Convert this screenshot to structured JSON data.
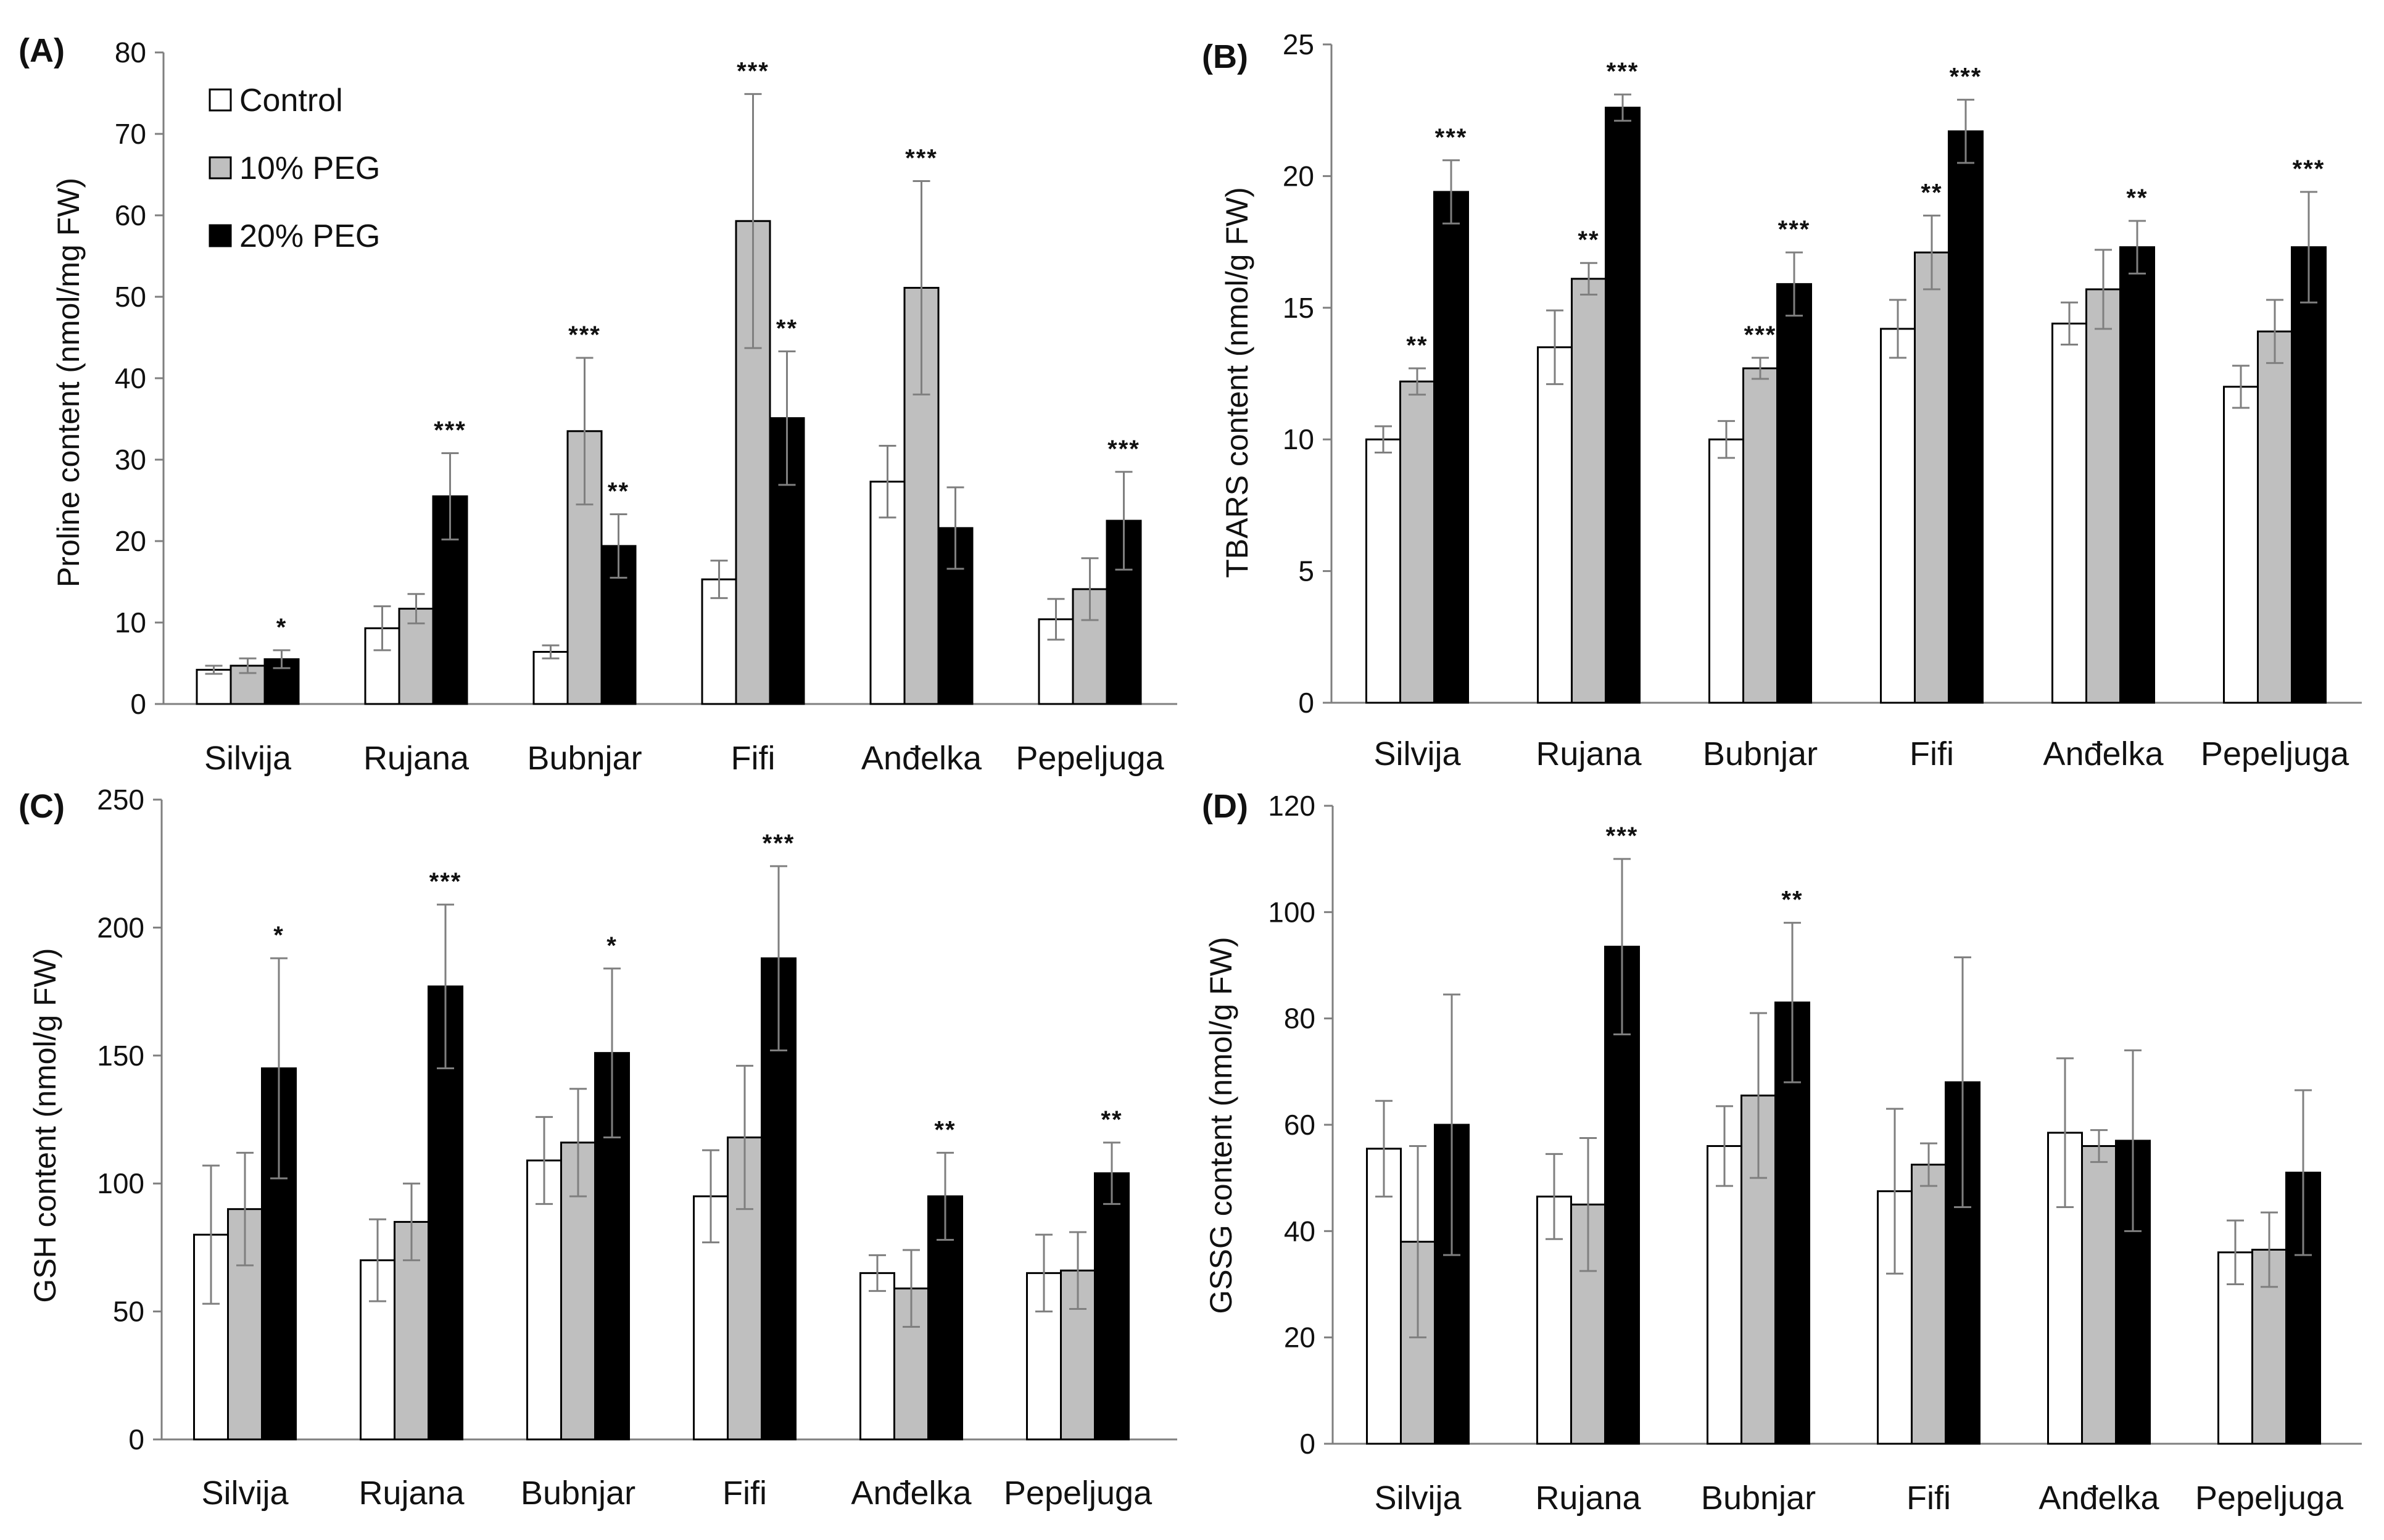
{
  "legend": {
    "entries": [
      "Control",
      "10% PEG",
      "20% PEG"
    ],
    "colors": [
      "#ffffff",
      "#bfbfbf",
      "#000000"
    ],
    "placement": "top-left of panel A"
  },
  "colors": {
    "axis": "#7f7f7f",
    "bar_stroke": "#000000",
    "error_bar": "#7f7f7f",
    "background": "#ffffff"
  },
  "chart_data": [
    {
      "type": "bar",
      "panel": "(A)",
      "title": "",
      "xlabel": "",
      "ylabel": "Proline content (nmol/mg FW)",
      "ylim": [
        0,
        80
      ],
      "yticks": [
        0,
        10,
        20,
        30,
        40,
        50,
        60,
        70,
        80
      ],
      "categories": [
        "Silvija",
        "Rujana",
        "Bubnjar",
        "Fifi",
        "Anđelka",
        "Pepeljuga"
      ],
      "series": [
        {
          "name": "Control",
          "values": [
            4.2,
            9.3,
            6.4,
            15.3,
            27.3,
            10.4
          ],
          "errors": [
            0.5,
            2.7,
            0.8,
            2.3,
            4.4,
            2.5
          ]
        },
        {
          "name": "10% PEG",
          "values": [
            4.7,
            11.7,
            33.5,
            59.3,
            51.1,
            14.1
          ],
          "errors": [
            0.9,
            1.8,
            9.0,
            15.6,
            13.1,
            3.8
          ]
        },
        {
          "name": "20% PEG",
          "values": [
            5.5,
            25.5,
            19.4,
            35.1,
            21.6,
            22.5
          ],
          "errors": [
            1.1,
            5.3,
            3.9,
            8.2,
            5.0,
            6.0
          ]
        }
      ],
      "significance": [
        [
          "",
          "",
          "*"
        ],
        [
          "",
          "",
          "***"
        ],
        [
          "",
          "***",
          "**"
        ],
        [
          "",
          "***",
          "**"
        ],
        [
          "",
          "***",
          ""
        ],
        [
          "",
          "",
          "***"
        ]
      ]
    },
    {
      "type": "bar",
      "panel": "(B)",
      "title": "",
      "xlabel": "",
      "ylabel": "TBARS content (nmol/g FW)",
      "ylim": [
        0,
        25
      ],
      "yticks": [
        0,
        5,
        10,
        15,
        20,
        25
      ],
      "categories": [
        "Silvija",
        "Rujana",
        "Bubnjar",
        "Fifi",
        "Anđelka",
        "Pepeljuga"
      ],
      "series": [
        {
          "name": "Control",
          "values": [
            10.0,
            13.5,
            10.0,
            14.2,
            14.4,
            12.0
          ],
          "errors": [
            0.5,
            1.4,
            0.7,
            1.1,
            0.8,
            0.8
          ]
        },
        {
          "name": "10% PEG",
          "values": [
            12.2,
            16.1,
            12.7,
            17.1,
            15.7,
            14.1
          ],
          "errors": [
            0.5,
            0.6,
            0.4,
            1.4,
            1.5,
            1.2
          ]
        },
        {
          "name": "20% PEG",
          "values": [
            19.4,
            22.6,
            15.9,
            21.7,
            17.3,
            17.3
          ],
          "errors": [
            1.2,
            0.5,
            1.2,
            1.2,
            1.0,
            2.1
          ]
        }
      ],
      "significance": [
        [
          "",
          "**",
          "***"
        ],
        [
          "",
          "**",
          "***"
        ],
        [
          "",
          "***",
          "***"
        ],
        [
          "",
          "**",
          "***"
        ],
        [
          "",
          "",
          "**"
        ],
        [
          "",
          "",
          "***"
        ]
      ]
    },
    {
      "type": "bar",
      "panel": "(C)",
      "title": "",
      "xlabel": "",
      "ylabel": "GSH content (nmol/g FW)",
      "ylim": [
        0,
        250
      ],
      "yticks": [
        0,
        50,
        100,
        150,
        200,
        250
      ],
      "categories": [
        "Silvija",
        "Rujana",
        "Bubnjar",
        "Fifi",
        "Anđelka",
        "Pepeljuga"
      ],
      "series": [
        {
          "name": "Control",
          "values": [
            80,
            70,
            109,
            95,
            65,
            65
          ],
          "errors": [
            27,
            16,
            17,
            18,
            7,
            15
          ]
        },
        {
          "name": "10% PEG",
          "values": [
            90,
            85,
            116,
            118,
            59,
            66
          ],
          "errors": [
            22,
            15,
            21,
            28,
            15,
            15
          ]
        },
        {
          "name": "20% PEG",
          "values": [
            145,
            177,
            151,
            188,
            95,
            104
          ],
          "errors": [
            43,
            32,
            33,
            36,
            17,
            12
          ]
        }
      ],
      "significance": [
        [
          "",
          "",
          "*"
        ],
        [
          "",
          "",
          "***"
        ],
        [
          "",
          "",
          "*"
        ],
        [
          "",
          "",
          "***"
        ],
        [
          "",
          "",
          "**"
        ],
        [
          "",
          "",
          "**"
        ]
      ]
    },
    {
      "type": "bar",
      "panel": "(D)",
      "title": "",
      "xlabel": "",
      "ylabel": "GSSG content (nmol/g FW)",
      "ylim": [
        0,
        120
      ],
      "yticks": [
        0,
        20,
        40,
        60,
        80,
        100,
        120
      ],
      "categories": [
        "Silvija",
        "Rujana",
        "Bubnjar",
        "Fifi",
        "Anđelka",
        "Pepeljuga"
      ],
      "series": [
        {
          "name": "Control",
          "values": [
            55.5,
            46.5,
            56.0,
            47.5,
            58.5,
            36.0
          ],
          "errors": [
            9.0,
            8.0,
            7.5,
            15.5,
            14.0,
            6.0
          ]
        },
        {
          "name": "10% PEG",
          "values": [
            38.0,
            45.0,
            65.5,
            52.5,
            56.0,
            36.5
          ],
          "errors": [
            18.0,
            12.5,
            15.5,
            4.0,
            3.0,
            7.0
          ]
        },
        {
          "name": "20% PEG",
          "values": [
            60.0,
            93.5,
            83.0,
            68.0,
            57.0,
            51.0
          ],
          "errors": [
            24.5,
            16.5,
            15.0,
            23.5,
            17.0,
            15.5
          ]
        }
      ],
      "significance": [
        [
          "",
          "",
          ""
        ],
        [
          "",
          "",
          "***"
        ],
        [
          "",
          "",
          "**"
        ],
        [
          "",
          "",
          ""
        ],
        [
          "",
          "",
          ""
        ],
        [
          "",
          "",
          ""
        ]
      ]
    }
  ]
}
